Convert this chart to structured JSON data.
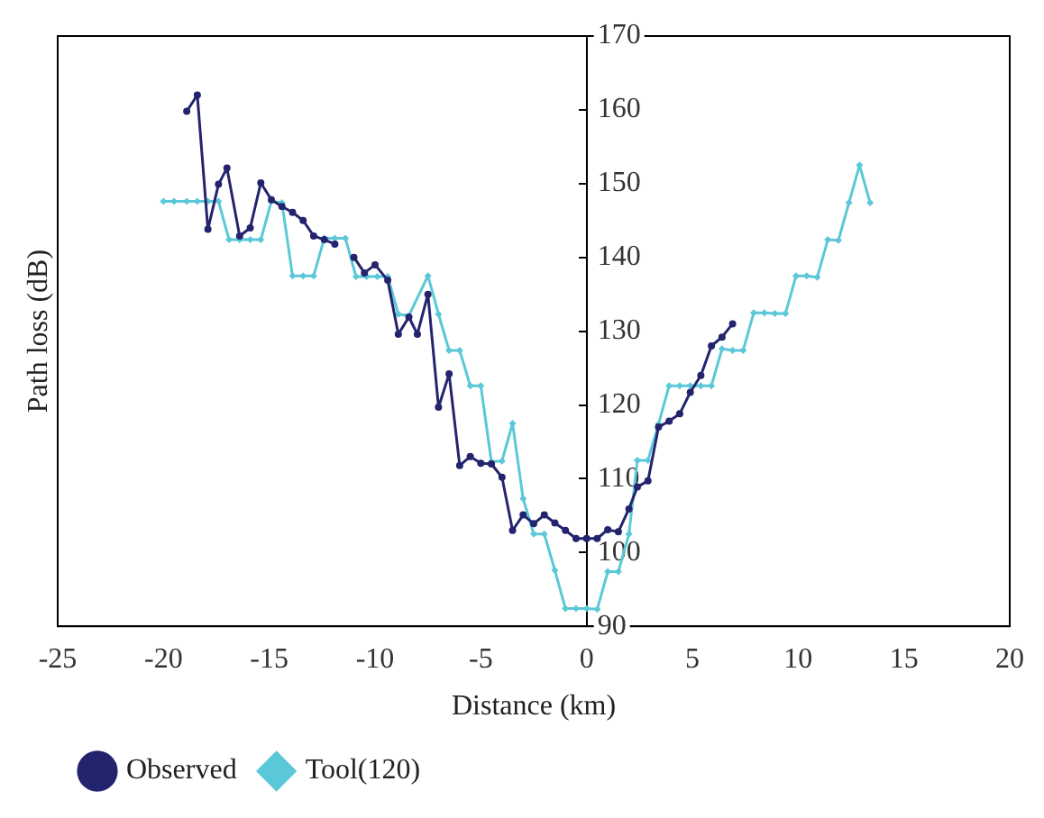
{
  "chart_data": {
    "type": "line",
    "xlabel": "Distance (km)",
    "ylabel": "Path loss (dB)",
    "xlim": [
      -25,
      20
    ],
    "xticks": [
      -25,
      -20,
      -15,
      -10,
      -5,
      0,
      5,
      10,
      15,
      20
    ],
    "ylim": [
      90,
      170
    ],
    "yticks": [
      90,
      100,
      110,
      120,
      130,
      140,
      150,
      160,
      170
    ],
    "grid": false,
    "legend": "bottom left",
    "line_style": "solid",
    "series": [
      {
        "name": "Observed",
        "color": "#24246e",
        "marker": "circle",
        "x": [
          -18.9,
          -18.4,
          -17.9,
          -17.4,
          -17.0,
          -16.4,
          -15.9,
          -15.4,
          -14.9,
          -14.4,
          -13.9,
          -13.4,
          -12.9,
          -12.4,
          -11.9,
          -11.5,
          -11.0,
          -10.5,
          -10.0,
          -9.4,
          -8.9,
          -8.4,
          -8.0,
          -7.5,
          -7.0,
          -6.5,
          -6.0,
          -5.5,
          -5.0,
          -4.5,
          -4.0,
          -3.5,
          -3.0,
          -2.5,
          -2.0,
          -1.5,
          -1.0,
          -0.5,
          0.0,
          0.5,
          1.0,
          1.5,
          2.0,
          2.4,
          2.9,
          3.4,
          3.9,
          4.4,
          4.9,
          5.4,
          5.9,
          6.4,
          6.9
        ],
        "values": [
          159.8,
          162.0,
          143.8,
          149.9,
          152.1,
          142.9,
          144.0,
          150.1,
          147.8,
          146.9,
          146.1,
          145.0,
          142.9,
          142.4,
          141.8,
          null,
          140.0,
          137.9,
          139.0,
          136.9,
          129.6,
          131.9,
          129.6,
          135.0,
          119.7,
          124.2,
          111.8,
          113.0,
          112.1,
          112.0,
          110.2,
          103.0,
          105.1,
          103.9,
          105.1,
          104.0,
          103.0,
          101.9,
          101.9,
          101.9,
          103.1,
          102.8,
          105.9,
          108.9,
          109.7,
          117.0,
          117.8,
          118.8,
          121.7,
          124.0,
          128.0,
          129.2,
          131.0
        ]
      },
      {
        "name": "Tool(120)",
        "color": "#5bc8d8",
        "marker": "diamond",
        "x": [
          -20,
          -19.5,
          -18.9,
          -18.4,
          -17.9,
          -17.4,
          -16.9,
          -16.4,
          -15.9,
          -15.4,
          -14.9,
          -14.4,
          -13.9,
          -13.4,
          -12.9,
          -12.4,
          -11.9,
          -11.4,
          -10.9,
          -10.4,
          -9.9,
          -9.4,
          -8.9,
          -8.4,
          -7.5,
          -7.0,
          -6.5,
          -6.0,
          -5.5,
          -5.0,
          -4.5,
          -4.0,
          -3.5,
          -3.0,
          -2.5,
          -2.0,
          -1.5,
          -1.0,
          -0.5,
          0.0,
          0.5,
          1.0,
          1.5,
          2.0,
          2.4,
          2.9,
          3.4,
          3.9,
          4.4,
          4.9,
          5.4,
          5.9,
          6.4,
          6.9,
          7.4,
          7.9,
          8.4,
          8.9,
          9.4,
          9.9,
          10.4,
          10.9,
          11.4,
          11.9,
          12.4,
          12.9,
          13.4
        ],
        "values": [
          147.6,
          147.6,
          147.6,
          147.6,
          147.6,
          147.6,
          142.4,
          142.4,
          142.4,
          142.4,
          147.6,
          147.4,
          137.5,
          137.5,
          137.5,
          142.6,
          142.6,
          142.6,
          137.4,
          137.4,
          137.4,
          137.4,
          132.3,
          132.1,
          137.5,
          132.3,
          127.4,
          127.4,
          122.6,
          122.6,
          112.3,
          112.4,
          117.5,
          107.3,
          102.5,
          102.5,
          97.6,
          92.4,
          92.4,
          92.4,
          92.3,
          97.4,
          97.4,
          102.5,
          112.5,
          112.5,
          117.4,
          122.6,
          122.6,
          122.6,
          122.6,
          122.6,
          127.6,
          127.4,
          127.4,
          132.5,
          132.5,
          132.4,
          132.4,
          137.5,
          137.5,
          137.3,
          142.4,
          142.3,
          147.4,
          152.5,
          147.4
        ]
      }
    ]
  }
}
